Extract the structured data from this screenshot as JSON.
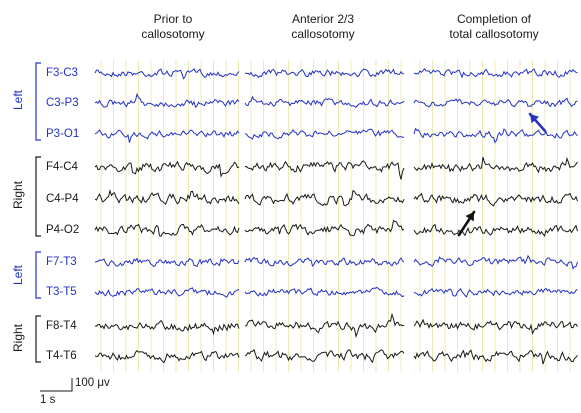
{
  "columns": [
    {
      "line1": "Prior to",
      "line2": "callosotomy"
    },
    {
      "line1": "Anterior 2/3",
      "line2": "callosotomy"
    },
    {
      "line1": "Completion of",
      "line2": "total callosotomy"
    }
  ],
  "groups": [
    {
      "label": "Left",
      "side": "left",
      "channels": [
        "F3-C3",
        "C3-P3",
        "P3-O1"
      ]
    },
    {
      "label": "Right",
      "side": "right",
      "channels": [
        "F4-C4",
        "C4-P4",
        "P4-O2"
      ]
    },
    {
      "label": "Left",
      "side": "left",
      "channels": [
        "F7-T3",
        "T3-T5"
      ]
    },
    {
      "label": "Right",
      "side": "right",
      "channels": [
        "F8-T4",
        "T4-T6"
      ]
    }
  ],
  "scale": {
    "voltage": "100 μv",
    "time": "1 s"
  },
  "colors": {
    "left": "#2433c4",
    "right": "#1a1a1a",
    "grid": "#e8e6a0"
  },
  "annotations": [
    {
      "name": "blue-arrow-icon",
      "color": "#2433c4"
    },
    {
      "name": "black-arrow-icon",
      "color": "#111111"
    }
  ]
}
